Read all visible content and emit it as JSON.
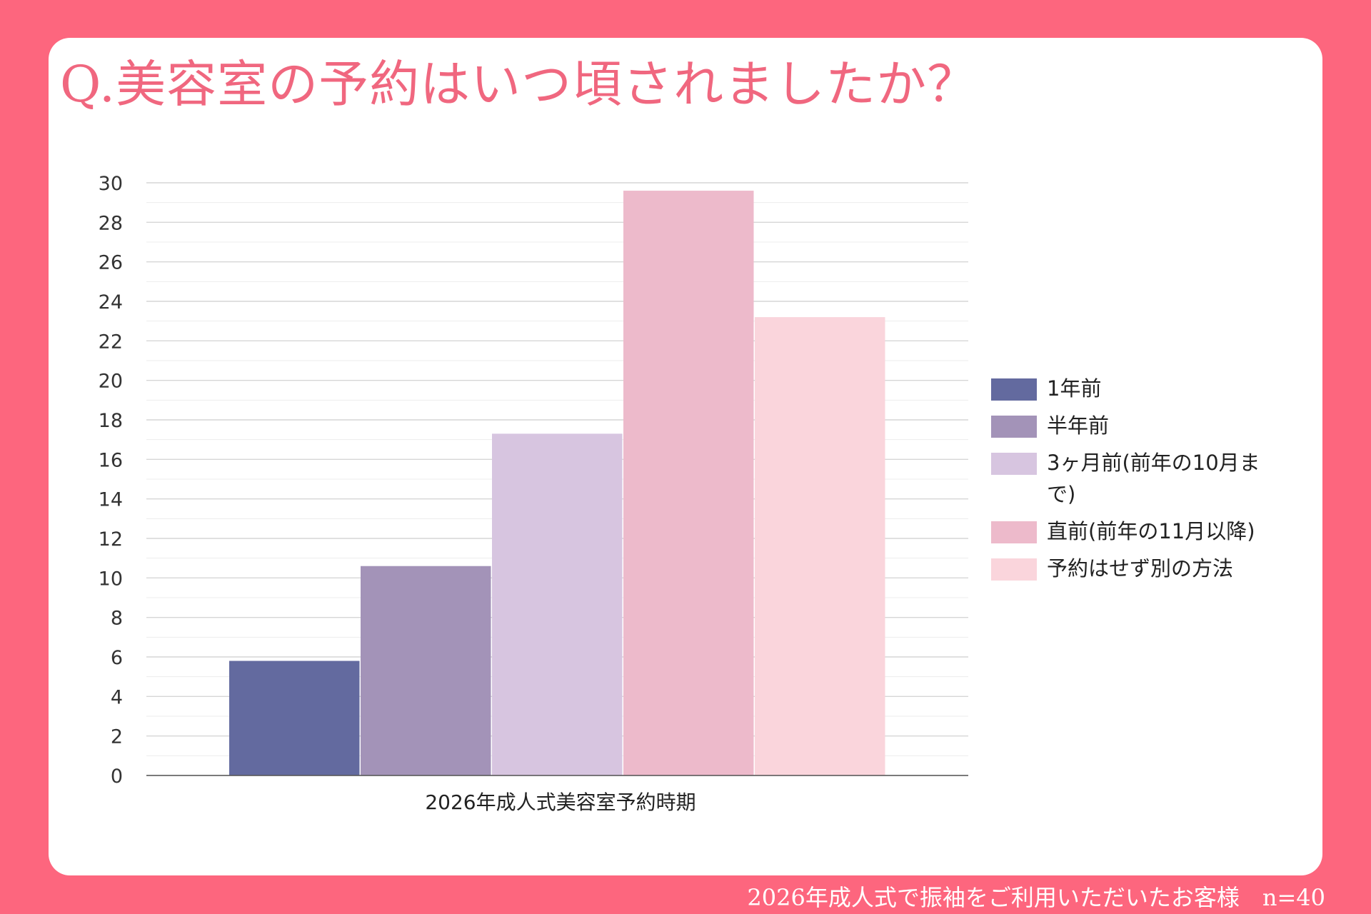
{
  "title": "Q.美容室の予約はいつ頃されましたか？",
  "footer": "2026年成人式で振袖をご利用いただいたお客様　n=40",
  "colors": {
    "frame": "#fd667e",
    "title": "#f0677f"
  },
  "chart_data": {
    "type": "bar",
    "categories": [
      "2026年成人式美容室予約時期"
    ],
    "xlabel": "2026年成人式美容室予約時期",
    "ylabel": "",
    "ylim": [
      0,
      30
    ],
    "ytick_step": 2,
    "yticks": [
      "0",
      "2",
      "4",
      "6",
      "8",
      "10",
      "12",
      "14",
      "16",
      "18",
      "20",
      "22",
      "24",
      "26",
      "28",
      "30"
    ],
    "grid": true,
    "legend_position": "right",
    "series": [
      {
        "name": "1年前",
        "values": [
          5.8
        ],
        "color": "#636a9f"
      },
      {
        "name": "半年前",
        "values": [
          10.6
        ],
        "color": "#a393b8"
      },
      {
        "name": "3ヶ月前(前年の10月まで)",
        "values": [
          17.3
        ],
        "color": "#d7c5e0"
      },
      {
        "name": "直前(前年の11月以降)",
        "values": [
          29.6
        ],
        "color": "#edbacb"
      },
      {
        "name": "予約はせず別の方法",
        "values": [
          23.2
        ],
        "color": "#fad5dc"
      }
    ]
  }
}
